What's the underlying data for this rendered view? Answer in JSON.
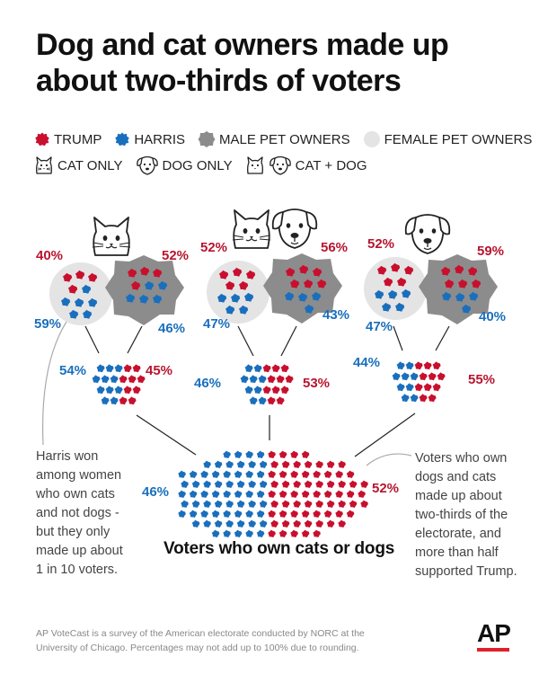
{
  "headline": {
    "line1": "Dog and cat owners made up",
    "line2": "about two-thirds of voters"
  },
  "legend": {
    "trump": "TRUMP",
    "harris": "HARRIS",
    "male": "MALE PET OWNERS",
    "female": "FEMALE PET OWNERS",
    "cat_only": "CAT ONLY",
    "dog_only": "DOG ONLY",
    "cat_dog": "CAT + DOG"
  },
  "colors": {
    "trump": "#c8102e",
    "harris": "#1a6fbd",
    "male": "#8c8c8c",
    "female": "#e4e4e4"
  },
  "groups": {
    "cat_only": {
      "female": {
        "trump": "40%",
        "harris": "59%"
      },
      "male": {
        "trump": "52%",
        "harris": "46%"
      },
      "combined": {
        "harris": "54%",
        "trump": "45%"
      }
    },
    "cat_dog": {
      "female": {
        "trump": "52%",
        "harris": "47%"
      },
      "male": {
        "trump": "56%",
        "harris": "43%"
      },
      "combined": {
        "harris": "46%",
        "trump": "53%"
      }
    },
    "dog_only": {
      "female": {
        "trump": "52%",
        "harris": "47%"
      },
      "male": {
        "trump": "59%",
        "harris": "40%"
      },
      "combined": {
        "harris": "44%",
        "trump": "55%"
      }
    },
    "total": {
      "harris": "46%",
      "trump": "52%"
    }
  },
  "notes": {
    "left": [
      "Harris won",
      "among women",
      "who own cats",
      "and not dogs -",
      "but they only",
      "made up about",
      "1 in 10 voters."
    ],
    "right": [
      "Voters who own",
      "dogs and cats",
      "made up about",
      "two-thirds of the",
      "electorate, and",
      "more than half",
      "supported Trump."
    ]
  },
  "caption": "Voters who own cats or dogs",
  "source": [
    "AP VoteCast is a survey of the American electorate conducted by NORC at the",
    "University of Chicago. Percentages may not add up to 100% due to rounding."
  ],
  "logo": "AP"
}
